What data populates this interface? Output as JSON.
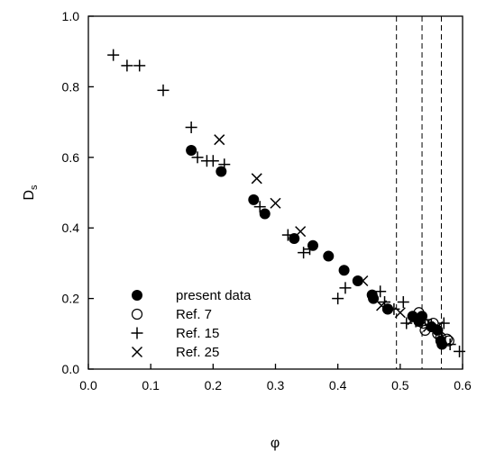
{
  "chart_data": {
    "type": "scatter",
    "xlabel": "φ",
    "ylabel": "D",
    "ylabel_sub": "s",
    "xlim": [
      0.0,
      0.6
    ],
    "ylim": [
      0.0,
      1.0
    ],
    "xticks": [
      0.0,
      0.1,
      0.2,
      0.3,
      0.4,
      0.5,
      0.6
    ],
    "yticks": [
      0.0,
      0.2,
      0.4,
      0.6,
      0.8,
      1.0
    ],
    "x_tick_labels": [
      "0.0",
      "0.1",
      "0.2",
      "0.3",
      "0.4",
      "0.5",
      "0.6"
    ],
    "y_tick_labels": [
      "0.0",
      "0.2",
      "0.4",
      "0.6",
      "0.8",
      "1.0"
    ],
    "vlines": [
      0.494,
      0.535,
      0.566
    ],
    "legend_position": "lower-left",
    "series": [
      {
        "name": "present data",
        "marker": "filled-circle",
        "points": [
          [
            0.165,
            0.62
          ],
          [
            0.213,
            0.56
          ],
          [
            0.265,
            0.48
          ],
          [
            0.283,
            0.44
          ],
          [
            0.33,
            0.37
          ],
          [
            0.36,
            0.35
          ],
          [
            0.385,
            0.32
          ],
          [
            0.41,
            0.28
          ],
          [
            0.432,
            0.25
          ],
          [
            0.455,
            0.21
          ],
          [
            0.457,
            0.2
          ],
          [
            0.48,
            0.17
          ],
          [
            0.52,
            0.15
          ],
          [
            0.535,
            0.15
          ],
          [
            0.53,
            0.135
          ],
          [
            0.55,
            0.12
          ],
          [
            0.56,
            0.11
          ],
          [
            0.565,
            0.08
          ],
          [
            0.567,
            0.07
          ]
        ]
      },
      {
        "name": "Ref. 7",
        "marker": "open-circle",
        "points": [
          [
            0.48,
            0.17
          ],
          [
            0.53,
            0.16
          ],
          [
            0.537,
            0.13
          ],
          [
            0.54,
            0.11
          ],
          [
            0.553,
            0.13
          ],
          [
            0.56,
            0.1
          ],
          [
            0.565,
            0.09
          ],
          [
            0.575,
            0.085
          ],
          [
            0.578,
            0.08
          ]
        ]
      },
      {
        "name": "Ref. 15",
        "marker": "plus",
        "points": [
          [
            0.04,
            0.89
          ],
          [
            0.062,
            0.86
          ],
          [
            0.082,
            0.86
          ],
          [
            0.12,
            0.79
          ],
          [
            0.165,
            0.685
          ],
          [
            0.175,
            0.6
          ],
          [
            0.19,
            0.59
          ],
          [
            0.2,
            0.59
          ],
          [
            0.218,
            0.58
          ],
          [
            0.275,
            0.46
          ],
          [
            0.32,
            0.38
          ],
          [
            0.345,
            0.33
          ],
          [
            0.355,
            0.34
          ],
          [
            0.4,
            0.2
          ],
          [
            0.412,
            0.23
          ],
          [
            0.468,
            0.22
          ],
          [
            0.475,
            0.19
          ],
          [
            0.49,
            0.17
          ],
          [
            0.505,
            0.19
          ],
          [
            0.51,
            0.13
          ],
          [
            0.525,
            0.135
          ],
          [
            0.54,
            0.14
          ],
          [
            0.55,
            0.125
          ],
          [
            0.57,
            0.13
          ],
          [
            0.58,
            0.07
          ],
          [
            0.595,
            0.05
          ]
        ]
      },
      {
        "name": "Ref. 25",
        "marker": "cross",
        "points": [
          [
            0.21,
            0.65
          ],
          [
            0.27,
            0.54
          ],
          [
            0.3,
            0.47
          ],
          [
            0.34,
            0.39
          ],
          [
            0.44,
            0.25
          ],
          [
            0.47,
            0.18
          ],
          [
            0.5,
            0.16
          ],
          [
            0.52,
            0.14
          ],
          [
            0.545,
            0.12
          ],
          [
            0.56,
            0.12
          ]
        ]
      }
    ]
  }
}
